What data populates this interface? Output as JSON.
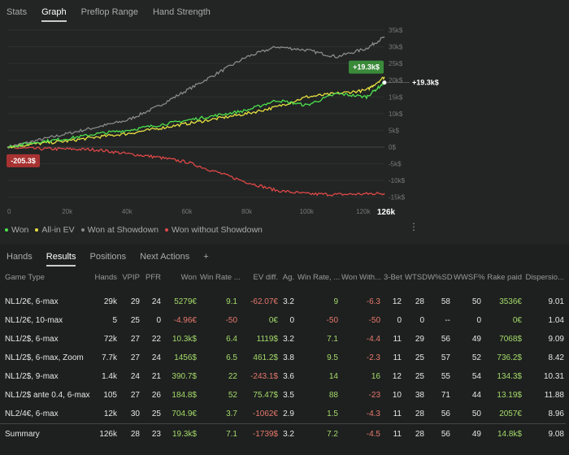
{
  "top_tabs": [
    {
      "label": "Stats"
    },
    {
      "label": "Graph",
      "active": true
    },
    {
      "label": "Preflop Range"
    },
    {
      "label": "Hand Strength"
    }
  ],
  "chart_data": {
    "type": "line",
    "x_ticks": [
      "0",
      "20k",
      "40k",
      "60k",
      "80k",
      "100k",
      "120k"
    ],
    "x_end_label": "126k",
    "y_ticks": [
      "35k$",
      "30k$",
      "25k$",
      "20k$",
      "15k$",
      "10k$",
      "5k$",
      "0$",
      "-5k$",
      "-10k$",
      "-15k$"
    ],
    "ylim": [
      -15000,
      35000
    ],
    "xlim": [
      0,
      126000
    ],
    "series": [
      {
        "name": "Won",
        "color": "#4ee04e",
        "x": [
          0,
          10000,
          20000,
          30000,
          40000,
          50000,
          60000,
          70000,
          80000,
          90000,
          100000,
          110000,
          120000,
          126000
        ],
        "y": [
          0,
          1500,
          2500,
          4000,
          5000,
          6500,
          8000,
          9500,
          11000,
          14000,
          12500,
          16000,
          15000,
          19300
        ]
      },
      {
        "name": "All-in EV",
        "color": "#e8e040",
        "x": [
          0,
          10000,
          20000,
          30000,
          40000,
          50000,
          60000,
          70000,
          80000,
          90000,
          100000,
          110000,
          120000,
          126000
        ],
        "y": [
          0,
          1000,
          1800,
          3000,
          4000,
          5500,
          7000,
          8500,
          10000,
          12000,
          15000,
          16000,
          17000,
          21000
        ]
      },
      {
        "name": "Won at Showdown",
        "color": "#8a8a8a",
        "x": [
          0,
          10000,
          20000,
          30000,
          40000,
          50000,
          60000,
          70000,
          80000,
          90000,
          100000,
          110000,
          120000,
          126000
        ],
        "y": [
          0,
          2000,
          4000,
          6000,
          8000,
          12000,
          17000,
          22000,
          27000,
          30000,
          29000,
          27000,
          29500,
          33000
        ]
      },
      {
        "name": "Won without Showdown",
        "color": "#e04848",
        "x": [
          0,
          10000,
          20000,
          30000,
          40000,
          50000,
          60000,
          70000,
          80000,
          90000,
          100000,
          110000,
          120000,
          126000
        ],
        "y": [
          -205.3,
          -500,
          -600,
          -800,
          -2000,
          -3000,
          -4500,
          -7500,
          -10500,
          -13000,
          -14000,
          -14200,
          -14000,
          -13800
        ]
      }
    ],
    "annotations": {
      "end_value": "+19.3k$",
      "end_badge": "+19.3k$",
      "start_badge": "-205.3$"
    },
    "grid": true,
    "legend": "bottom-left"
  },
  "bottom_tabs": [
    {
      "label": "Hands"
    },
    {
      "label": "Results",
      "active": true
    },
    {
      "label": "Positions"
    },
    {
      "label": "Next Actions"
    },
    {
      "label": "+"
    }
  ],
  "table": {
    "headers": [
      "Game Type",
      "Hands",
      "VPIP",
      "PFR",
      "Won",
      "Win Rate ...",
      "EV diff.",
      "Ag.",
      "Win Rate, ...",
      "Won With...",
      "3-Bet",
      "WTSD",
      "W%SD",
      "WWSF%",
      "Rake paid",
      "Dispersio..."
    ],
    "rows": [
      [
        "NL1/2€, 6-max",
        "29k",
        "29",
        "24",
        "5279€",
        "9.1",
        "-62.07€",
        "3.2",
        "9",
        "-6.3",
        "12",
        "28",
        "58",
        "50",
        "3536€",
        "9.01"
      ],
      [
        "NL1/2€, 10-max",
        "5",
        "25",
        "0",
        "-4.96€",
        "-50",
        "0€",
        "0",
        "-50",
        "-50",
        "0",
        "0",
        "--",
        "0",
        "0€",
        "1.04"
      ],
      [
        "NL1/2$, 6-max",
        "72k",
        "27",
        "22",
        "10.3k$",
        "6.4",
        "1119$",
        "3.2",
        "7.1",
        "-4.4",
        "11",
        "29",
        "56",
        "49",
        "7068$",
        "9.09"
      ],
      [
        "NL1/2$, 6-max, Zoom",
        "7.7k",
        "27",
        "24",
        "1456$",
        "6.5",
        "461.2$",
        "3.8",
        "9.5",
        "-2.3",
        "11",
        "25",
        "57",
        "52",
        "736.2$",
        "8.42"
      ],
      [
        "NL1/2$, 9-max",
        "1.4k",
        "24",
        "21",
        "390.7$",
        "22",
        "-243.1$",
        "3.6",
        "14",
        "16",
        "12",
        "25",
        "55",
        "54",
        "134.3$",
        "10.31"
      ],
      [
        "NL1/2$ ante 0.4, 6-max",
        "105",
        "27",
        "26",
        "184.8$",
        "52",
        "75.47$",
        "3.5",
        "88",
        "-23",
        "10",
        "38",
        "71",
        "44",
        "13.19$",
        "11.88"
      ],
      [
        "NL2/4€, 6-max",
        "12k",
        "30",
        "25",
        "704.9€",
        "3.7",
        "-1062€",
        "2.9",
        "1.5",
        "-4.3",
        "11",
        "28",
        "56",
        "50",
        "2057€",
        "8.96"
      ]
    ],
    "summary": [
      "Summary",
      "126k",
      "28",
      "23",
      "19.3k$",
      "7.1",
      "-1739$",
      "3.2",
      "7.2",
      "-4.5",
      "11",
      "28",
      "56",
      "49",
      "14.8k$",
      "9.08"
    ]
  },
  "colors": {
    "positive": "#a6d96a",
    "negative": "#e8776c",
    "badge_green": "#3a8a3a",
    "badge_red": "#a83232"
  }
}
